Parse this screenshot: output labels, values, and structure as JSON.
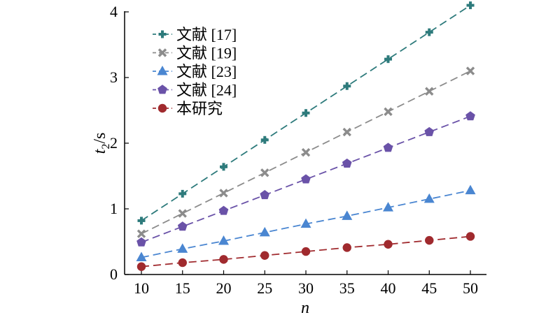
{
  "chart_data": {
    "type": "line",
    "title": "",
    "xlabel": "n",
    "ylabel": {
      "main": "t",
      "sub": "2",
      "unit": "/s"
    },
    "x": [
      10,
      15,
      20,
      25,
      30,
      35,
      40,
      45,
      50
    ],
    "xlim": [
      10,
      50
    ],
    "ylim": [
      0,
      4
    ],
    "xticks": [
      "10",
      "15",
      "20",
      "25",
      "30",
      "35",
      "40",
      "45",
      "50"
    ],
    "yticks": [
      "0",
      "1",
      "2",
      "3",
      "4"
    ],
    "grid": false,
    "legend_position": "top-left",
    "series": [
      {
        "name": "文献 [17]",
        "marker": "plus",
        "color": "#2e7b7c",
        "values": [
          0.82,
          1.23,
          1.64,
          2.05,
          2.46,
          2.87,
          3.28,
          3.69,
          4.1
        ]
      },
      {
        "name": "文献 [19]",
        "marker": "x",
        "color": "#8c8c8c",
        "values": [
          0.62,
          0.93,
          1.24,
          1.55,
          1.86,
          2.17,
          2.48,
          2.79,
          3.1
        ]
      },
      {
        "name": "文献 [23]",
        "marker": "triangle",
        "color": "#4a86d1",
        "values": [
          0.26,
          0.39,
          0.51,
          0.64,
          0.77,
          0.89,
          1.02,
          1.15,
          1.28
        ]
      },
      {
        "name": "文献 [24]",
        "marker": "pentagon",
        "color": "#6a52a8",
        "values": [
          0.49,
          0.73,
          0.97,
          1.21,
          1.45,
          1.69,
          1.93,
          2.17,
          2.41
        ]
      },
      {
        "name": "本研究",
        "marker": "circle",
        "color": "#a02a2e",
        "values": [
          0.12,
          0.18,
          0.23,
          0.29,
          0.35,
          0.41,
          0.46,
          0.52,
          0.58
        ]
      }
    ]
  }
}
